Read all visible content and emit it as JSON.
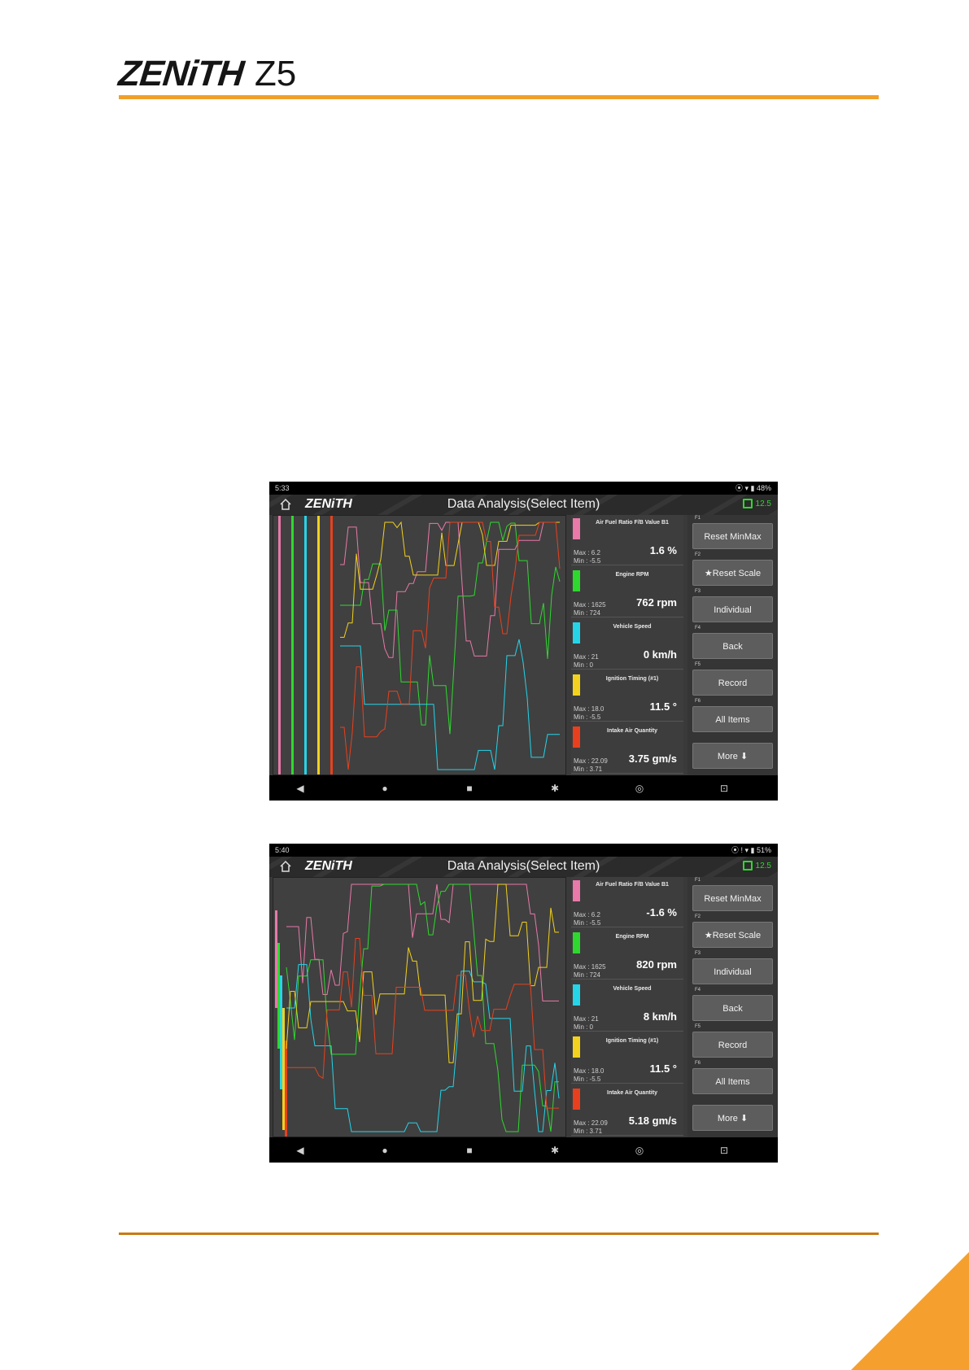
{
  "header": {
    "brand": "ZENiTH",
    "model": "Z5"
  },
  "colors": {
    "accent": "#f0a02a",
    "pink": "#e879a8",
    "green": "#2fd82f",
    "cyan": "#26d4e8",
    "yellow": "#f2d21e",
    "red": "#e8401e"
  },
  "screens": [
    {
      "status_time": "5:33",
      "status_right": "⦿ ▾ ▮ 48%",
      "app_logo": "ZENiTH",
      "title": "Data Analysis(Select Item)",
      "battery": "12.5",
      "items": [
        {
          "name": "Air Fuel Ratio F/B Value B1",
          "max": "Max :  6.2",
          "min": "Min : -5.5",
          "value": "1.6 %",
          "color": "#e879a8"
        },
        {
          "name": "Engine RPM",
          "max": "Max :  1625",
          "min": "Min :  724",
          "value": "762 rpm",
          "color": "#2fd82f"
        },
        {
          "name": "Vehicle Speed",
          "max": "Max :   21",
          "min": "Min :    0",
          "value": "0 km/h",
          "color": "#26d4e8"
        },
        {
          "name": "Ignition Timing (#1)",
          "max": "Max :  18.0",
          "min": "Min :  -5.5",
          "value": "11.5 °",
          "color": "#f2d21e"
        },
        {
          "name": "Intake Air Quantity",
          "max": "Max : 22.09",
          "min": "Min :  3.71",
          "value": "3.75 gm/s",
          "color": "#e8401e"
        }
      ],
      "fkeys": [
        {
          "tag": "F1",
          "label": "Reset MinMax"
        },
        {
          "tag": "F2",
          "label": "★Reset Scale"
        },
        {
          "tag": "F3",
          "label": "Individual"
        },
        {
          "tag": "F4",
          "label": "Back"
        },
        {
          "tag": "F5",
          "label": "Record"
        },
        {
          "tag": "F6",
          "label": "All Items"
        },
        {
          "tag": "",
          "label": "More ⬇"
        }
      ]
    },
    {
      "status_time": "5:40",
      "status_right": "⦿ ! ▾ ▮ 51%",
      "app_logo": "ZENiTH",
      "title": "Data Analysis(Select Item)",
      "battery": "12.5",
      "items": [
        {
          "name": "Air Fuel Ratio F/B Value B1",
          "max": "Max :  6.2",
          "min": "Min : -5.5",
          "value": "-1.6 %",
          "color": "#e879a8"
        },
        {
          "name": "Engine RPM",
          "max": "Max :  1625",
          "min": "Min :  724",
          "value": "820 rpm",
          "color": "#2fd82f"
        },
        {
          "name": "Vehicle Speed",
          "max": "Max :   21",
          "min": "Min :    0",
          "value": "8 km/h",
          "color": "#26d4e8"
        },
        {
          "name": "Ignition Timing (#1)",
          "max": "Max :  18.0",
          "min": "Min :  -5.5",
          "value": "11.5 °",
          "color": "#f2d21e"
        },
        {
          "name": "Intake Air Quantity",
          "max": "Max : 22.09",
          "min": "Min :  3.71",
          "value": "5.18 gm/s",
          "color": "#e8401e"
        }
      ],
      "fkeys": [
        {
          "tag": "F1",
          "label": "Reset MinMax"
        },
        {
          "tag": "F2",
          "label": "★Reset Scale"
        },
        {
          "tag": "F3",
          "label": "Individual"
        },
        {
          "tag": "F4",
          "label": "Back"
        },
        {
          "tag": "F5",
          "label": "Record"
        },
        {
          "tag": "F6",
          "label": "All Items"
        },
        {
          "tag": "",
          "label": "More ⬇"
        }
      ]
    }
  ]
}
